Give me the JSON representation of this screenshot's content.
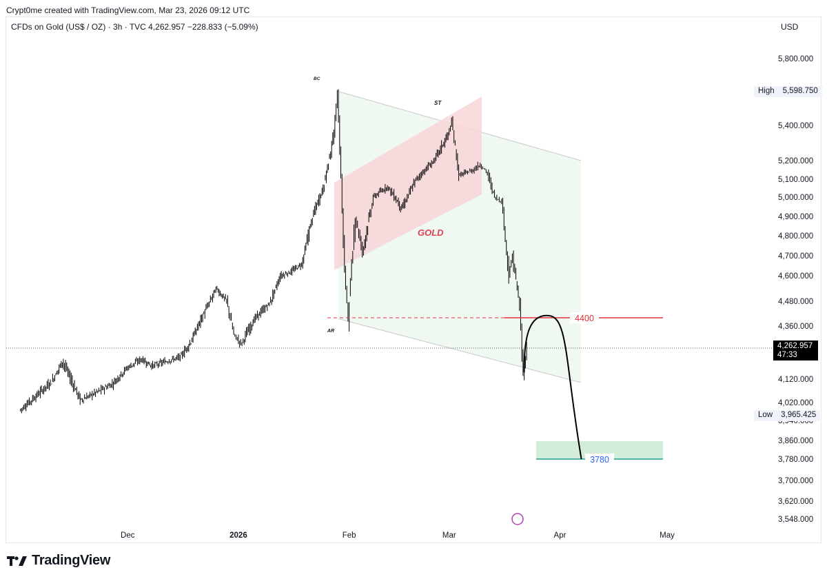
{
  "credit": "Crypt0me created with TradingView.com, Mar 23, 2026 09:12 UTC",
  "symbol_line": "CFDs on Gold (US$ / OZ) · 3h · TVC   4,262.957   −228.833 (−5.09%)",
  "currency": "USD",
  "brand": "TradingView",
  "current_price": {
    "value": "4,262.957",
    "countdown": "47:33"
  },
  "high": {
    "label": "High",
    "value": "5,598.750"
  },
  "low": {
    "label": "Low",
    "value": "3,965.425"
  },
  "colors": {
    "candle": "#000000",
    "red_level": "#e0313c",
    "teal_level": "#1b9e8f",
    "pink_channel": "#f8d6d8",
    "green_channel": "#eaf5ec",
    "target_box": "#cde9d4",
    "label_gold": "#d9424e",
    "label_3780": "#2962ff"
  },
  "chart_data": {
    "type": "line",
    "title": "GOLD",
    "series": [
      {
        "values": [
          {
            "x": "2025-11-01",
            "y": 3985
          },
          {
            "x": "2025-11-05",
            "y": 4040
          },
          {
            "x": "2025-11-10",
            "y": 4110
          },
          {
            "x": "2025-11-13",
            "y": 4200
          },
          {
            "x": "2025-11-18",
            "y": 4030
          },
          {
            "x": "2025-11-22",
            "y": 4060
          },
          {
            "x": "2025-11-27",
            "y": 4100
          },
          {
            "x": "2025-12-01",
            "y": 4170
          },
          {
            "x": "2025-12-05",
            "y": 4210
          },
          {
            "x": "2025-12-08",
            "y": 4180
          },
          {
            "x": "2025-12-12",
            "y": 4200
          },
          {
            "x": "2025-12-16",
            "y": 4220
          },
          {
            "x": "2025-12-19",
            "y": 4290
          },
          {
            "x": "2025-12-22",
            "y": 4400
          },
          {
            "x": "2025-12-26",
            "y": 4540
          },
          {
            "x": "2025-12-29",
            "y": 4480
          },
          {
            "x": "2025-12-31",
            "y": 4320
          },
          {
            "x": "2026-01-02",
            "y": 4280
          },
          {
            "x": "2026-01-06",
            "y": 4400
          },
          {
            "x": "2026-01-10",
            "y": 4470
          },
          {
            "x": "2026-01-13",
            "y": 4600
          },
          {
            "x": "2026-01-16",
            "y": 4620
          },
          {
            "x": "2026-01-19",
            "y": 4660
          },
          {
            "x": "2026-01-22",
            "y": 4900
          },
          {
            "x": "2026-01-25",
            "y": 5050
          },
          {
            "x": "2026-01-28",
            "y": 5350
          },
          {
            "x": "2026-01-29",
            "y": 5598
          },
          {
            "x": "2026-01-30",
            "y": 5100
          },
          {
            "x": "2026-01-31",
            "y": 4620
          },
          {
            "x": "2026-02-01",
            "y": 4400
          },
          {
            "x": "2026-02-03",
            "y": 4900
          },
          {
            "x": "2026-02-05",
            "y": 4720
          },
          {
            "x": "2026-02-08",
            "y": 5000
          },
          {
            "x": "2026-02-12",
            "y": 5060
          },
          {
            "x": "2026-02-16",
            "y": 4940
          },
          {
            "x": "2026-02-20",
            "y": 5100
          },
          {
            "x": "2026-02-25",
            "y": 5200
          },
          {
            "x": "2026-03-01",
            "y": 5350
          },
          {
            "x": "2026-03-02",
            "y": 5420
          },
          {
            "x": "2026-03-04",
            "y": 5120
          },
          {
            "x": "2026-03-08",
            "y": 5150
          },
          {
            "x": "2026-03-10",
            "y": 5180
          },
          {
            "x": "2026-03-12",
            "y": 5130
          },
          {
            "x": "2026-03-14",
            "y": 5000
          },
          {
            "x": "2026-03-16",
            "y": 4980
          },
          {
            "x": "2026-03-18",
            "y": 4600
          },
          {
            "x": "2026-03-19",
            "y": 4700
          },
          {
            "x": "2026-03-21",
            "y": 4450
          },
          {
            "x": "2026-03-22",
            "y": 4130
          },
          {
            "x": "2026-03-23",
            "y": 4262.957
          }
        ]
      },
      {
        "values": [
          {
            "x": "2026-03-22",
            "y": 4150
          },
          {
            "x": "2026-03-25",
            "y": 4300
          },
          {
            "x": "2026-03-29",
            "y": 4410
          },
          {
            "x": "2026-04-01",
            "y": 4300
          },
          {
            "x": "2026-04-04",
            "y": 4000
          },
          {
            "x": "2026-04-07",
            "y": 3780
          }
        ]
      }
    ],
    "y_ticks": [
      "5,800.000",
      "5,400.000",
      "5,200.000",
      "5,100.000",
      "5,000.000",
      "4,900.000",
      "4,800.000",
      "4,700.000",
      "4,600.000",
      "4,480.000",
      "4,360.000",
      "4,120.000",
      "4,020.000",
      "3,940.000",
      "3,860.000",
      "3,780.000",
      "3,700.000",
      "3,620.000",
      "3,548.000"
    ],
    "x_ticks": [
      "Dec",
      "2026",
      "Feb",
      "Mar",
      "Apr",
      "May"
    ],
    "ylim": [
      3520,
      5900
    ],
    "annotations": [
      "BC",
      "ST",
      "AR",
      "GOLD",
      "4400",
      "3780"
    ],
    "levels": [
      {
        "label": "4400",
        "value": 4400
      },
      {
        "label": "3780",
        "value": 3780
      }
    ]
  }
}
